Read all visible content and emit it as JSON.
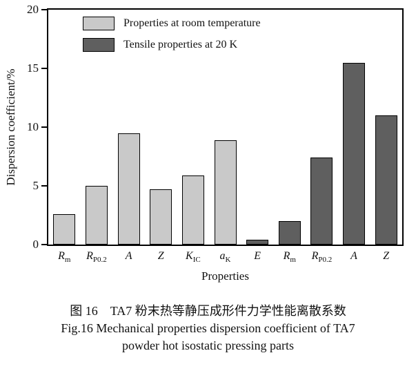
{
  "chart_data": {
    "type": "bar",
    "title": "",
    "xlabel": "Properties",
    "ylabel": "Dispersion coefficient/%",
    "ylim": [
      0,
      20
    ],
    "yticks": [
      0,
      5,
      10,
      15,
      20
    ],
    "grid": false,
    "legend_position": "top-left-inside",
    "legend": [
      {
        "label": "Properties at room temperature",
        "color": "#c9c9c9"
      },
      {
        "label": "Tensile properties at 20 K",
        "color": "#5f5f5f"
      }
    ],
    "categories": [
      {
        "base": "R",
        "sub": "m"
      },
      {
        "base": "R",
        "sub": "P0.2"
      },
      {
        "base": "A",
        "sub": ""
      },
      {
        "base": "Z",
        "sub": ""
      },
      {
        "base": "K",
        "sub": "IC"
      },
      {
        "base": "a",
        "sub": "K"
      },
      {
        "base": "E",
        "sub": ""
      },
      {
        "base": "R",
        "sub": "m"
      },
      {
        "base": "R",
        "sub": "P0.2"
      },
      {
        "base": "A",
        "sub": ""
      },
      {
        "base": "Z",
        "sub": ""
      }
    ],
    "values": [
      2.6,
      5.0,
      9.5,
      4.7,
      5.9,
      8.9,
      0.4,
      2.0,
      7.4,
      15.5,
      11.0
    ],
    "groups": [
      0,
      0,
      0,
      0,
      0,
      0,
      1,
      1,
      1,
      1,
      1
    ]
  },
  "caption": {
    "line1": "图 16　TA7 粉末热等静压成形件力学性能离散系数",
    "line2": "Fig.16 Mechanical properties dispersion coefficient of TA7",
    "line3": "powder hot isostatic pressing parts"
  }
}
